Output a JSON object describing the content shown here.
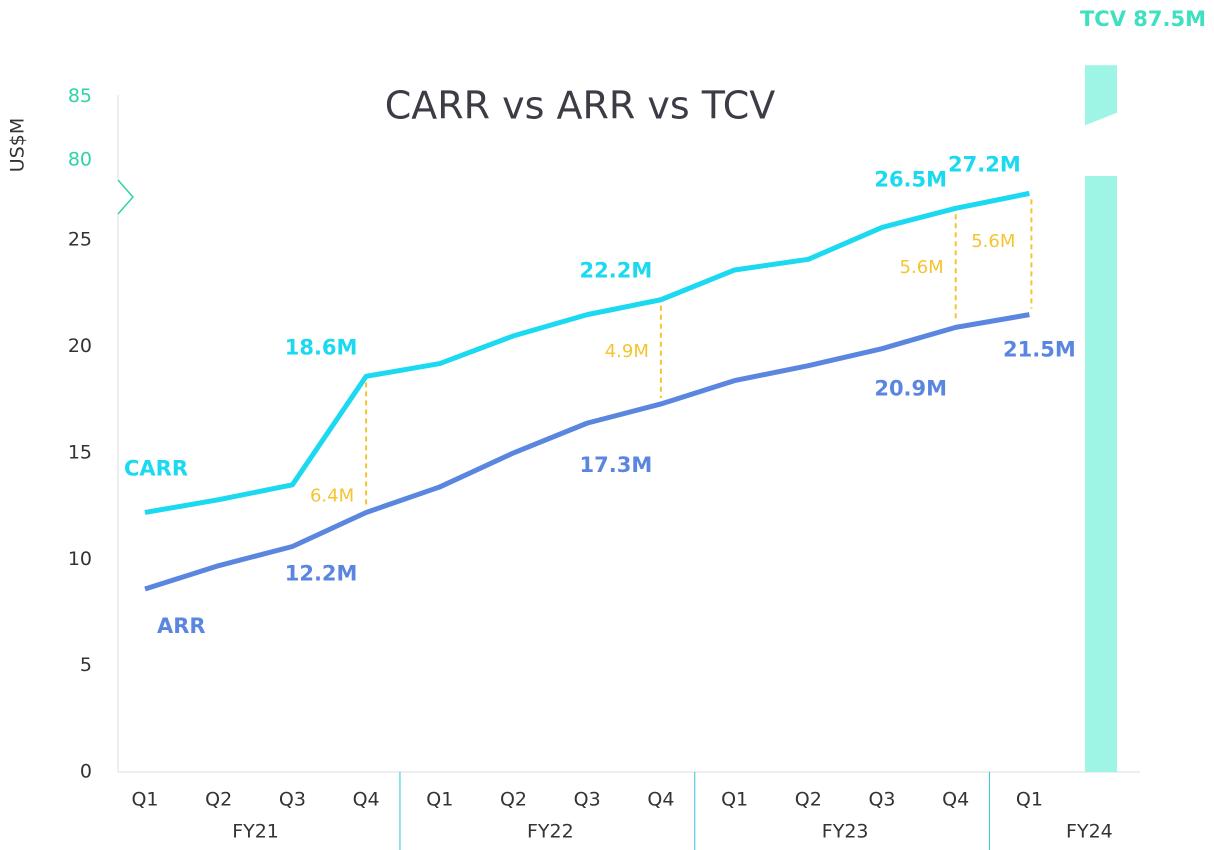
{
  "chart_data": {
    "type": "line",
    "title": "CARR vs ARR vs TCV",
    "y_label": "US$M",
    "categories": [
      "Q1",
      "Q2",
      "Q3",
      "Q4",
      "Q1",
      "Q2",
      "Q3",
      "Q4",
      "Q1",
      "Q2",
      "Q3",
      "Q4",
      "Q1"
    ],
    "groups": [
      {
        "name": "FY21",
        "size": 4
      },
      {
        "name": "FY22",
        "size": 4
      },
      {
        "name": "FY23",
        "size": 4
      },
      {
        "name": "FY24",
        "size": 1
      }
    ],
    "series": [
      {
        "name": "CARR",
        "color": "#1ad9f0",
        "values": [
          12.2,
          12.8,
          13.5,
          18.6,
          19.2,
          20.5,
          21.5,
          22.2,
          23.6,
          24.1,
          25.6,
          26.5,
          27.2
        ],
        "value_labels": [
          null,
          null,
          null,
          "18.6M",
          null,
          null,
          null,
          "22.2M",
          null,
          null,
          null,
          "26.5M",
          "27.2M"
        ]
      },
      {
        "name": "ARR",
        "color": "#5b86e0",
        "values": [
          8.6,
          9.7,
          10.6,
          12.2,
          13.4,
          15.0,
          16.4,
          17.3,
          18.4,
          19.1,
          19.9,
          20.9,
          21.5
        ],
        "value_labels": [
          null,
          null,
          null,
          "12.2M",
          null,
          null,
          null,
          "17.3M",
          null,
          null,
          null,
          "20.9M",
          "21.5M"
        ]
      }
    ],
    "gaps": {
      "color": "#f5c431",
      "items": [
        {
          "x": 3,
          "value": 6.4,
          "label": "6.4M"
        },
        {
          "x": 7,
          "value": 4.9,
          "label": "4.9M"
        },
        {
          "x": 11,
          "value": 5.6,
          "label": "5.6M"
        },
        {
          "x": 12,
          "value": 5.6,
          "label": "5.6M"
        }
      ]
    },
    "tcv": {
      "value": 87.5,
      "label": "TCV 87.5M",
      "color": "#9ef5e5",
      "label_color": "#3ee0c0"
    },
    "ylim": [
      0,
      27.5
    ],
    "yticks": [
      0,
      5,
      10,
      15,
      20,
      25
    ],
    "ylim_upper": [
      78,
      89.5
    ],
    "yticks_upper": [
      80,
      85
    ],
    "upper_tick_color": "#2ed3a8"
  }
}
